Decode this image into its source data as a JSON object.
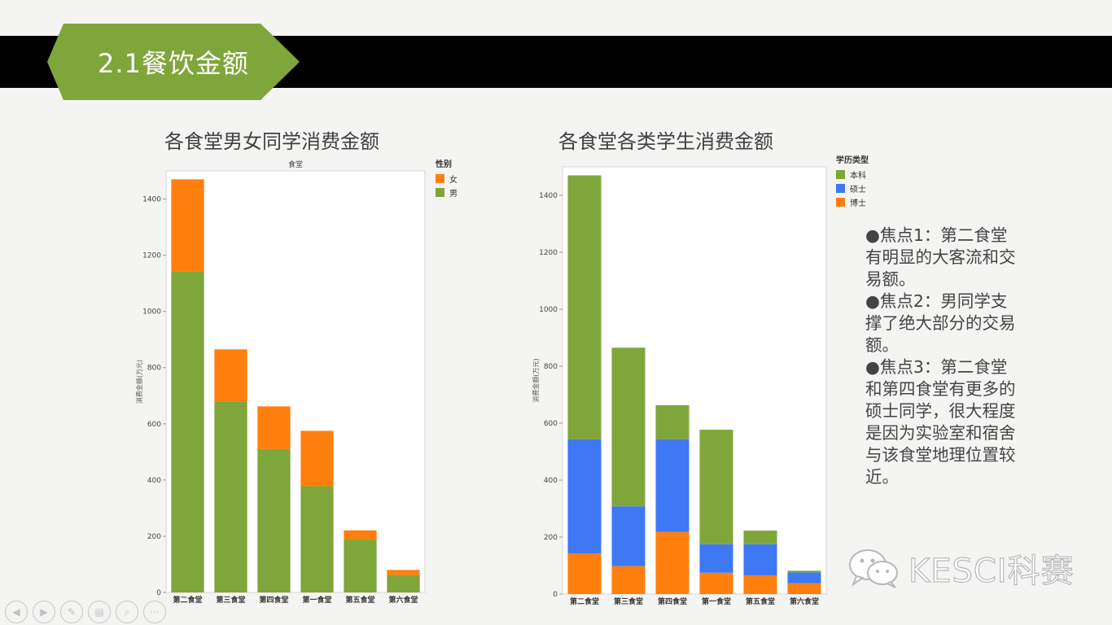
{
  "slide": {
    "title": "2.1餐饮金额",
    "accent": "#7fa63b",
    "bar_color": "#000000"
  },
  "notes": [
    "●焦点1：第二食堂有明显的大客流和交易额。",
    "●焦点2：男同学支撑了绝大部分的交易额。",
    "●焦点3：第二食堂和第四食堂有更多的硕士同学，很大程度是因为实验室和宿舍与该食堂地理位置较近。"
  ],
  "watermark": {
    "text": "KESCI科赛",
    "icon": "wechat-icon"
  },
  "nav_icons": [
    "prev-icon",
    "next-icon",
    "pen-icon",
    "menu-icon",
    "zoom-icon",
    "more-icon"
  ],
  "chart_data": [
    {
      "type": "bar",
      "stacked": true,
      "title": "各食堂男女同学消费金额",
      "header": "食堂",
      "ylabel": "消费金额(万元)",
      "ylim": [
        0,
        1500
      ],
      "yticks": [
        0,
        200,
        400,
        600,
        800,
        1000,
        1200,
        1400
      ],
      "categories": [
        "第二食堂",
        "第三食堂",
        "第四食堂",
        "第一食堂",
        "第五食堂",
        "第六食堂"
      ],
      "legend_title": "性别",
      "legend": [
        {
          "name": "女",
          "color": "#ff7f0e"
        },
        {
          "name": "男",
          "color": "#7fa63b"
        }
      ],
      "series": [
        {
          "name": "男",
          "color": "#7fa63b",
          "values": [
            1142,
            680,
            510,
            378,
            188,
            62
          ]
        },
        {
          "name": "女",
          "color": "#ff7f0e",
          "values": [
            328,
            185,
            152,
            197,
            33,
            18
          ]
        }
      ],
      "grid": false,
      "legend_position": "top-right"
    },
    {
      "type": "bar",
      "stacked": true,
      "title": "各食堂各类学生消费金额",
      "ylabel": "消费金额(万元)",
      "ylim": [
        0,
        1500
      ],
      "yticks": [
        0,
        200,
        400,
        600,
        800,
        1000,
        1200,
        1400
      ],
      "categories": [
        "第二食堂",
        "第三食堂",
        "第四食堂",
        "第一食堂",
        "第五食堂",
        "第六食堂"
      ],
      "legend_title": "学历类型",
      "legend": [
        {
          "name": "本科",
          "color": "#7fa63b"
        },
        {
          "name": "硕士",
          "color": "#3f78f5"
        },
        {
          "name": "博士",
          "color": "#ff7f0e"
        }
      ],
      "series": [
        {
          "name": "博士",
          "color": "#ff7f0e",
          "values": [
            143,
            98,
            218,
            75,
            65,
            38
          ]
        },
        {
          "name": "硕士",
          "color": "#3f78f5",
          "values": [
            400,
            210,
            325,
            100,
            110,
            38
          ]
        },
        {
          "name": "本科",
          "color": "#7fa63b",
          "values": [
            927,
            557,
            120,
            402,
            48,
            6
          ]
        }
      ],
      "grid": false,
      "legend_position": "top-right"
    }
  ]
}
